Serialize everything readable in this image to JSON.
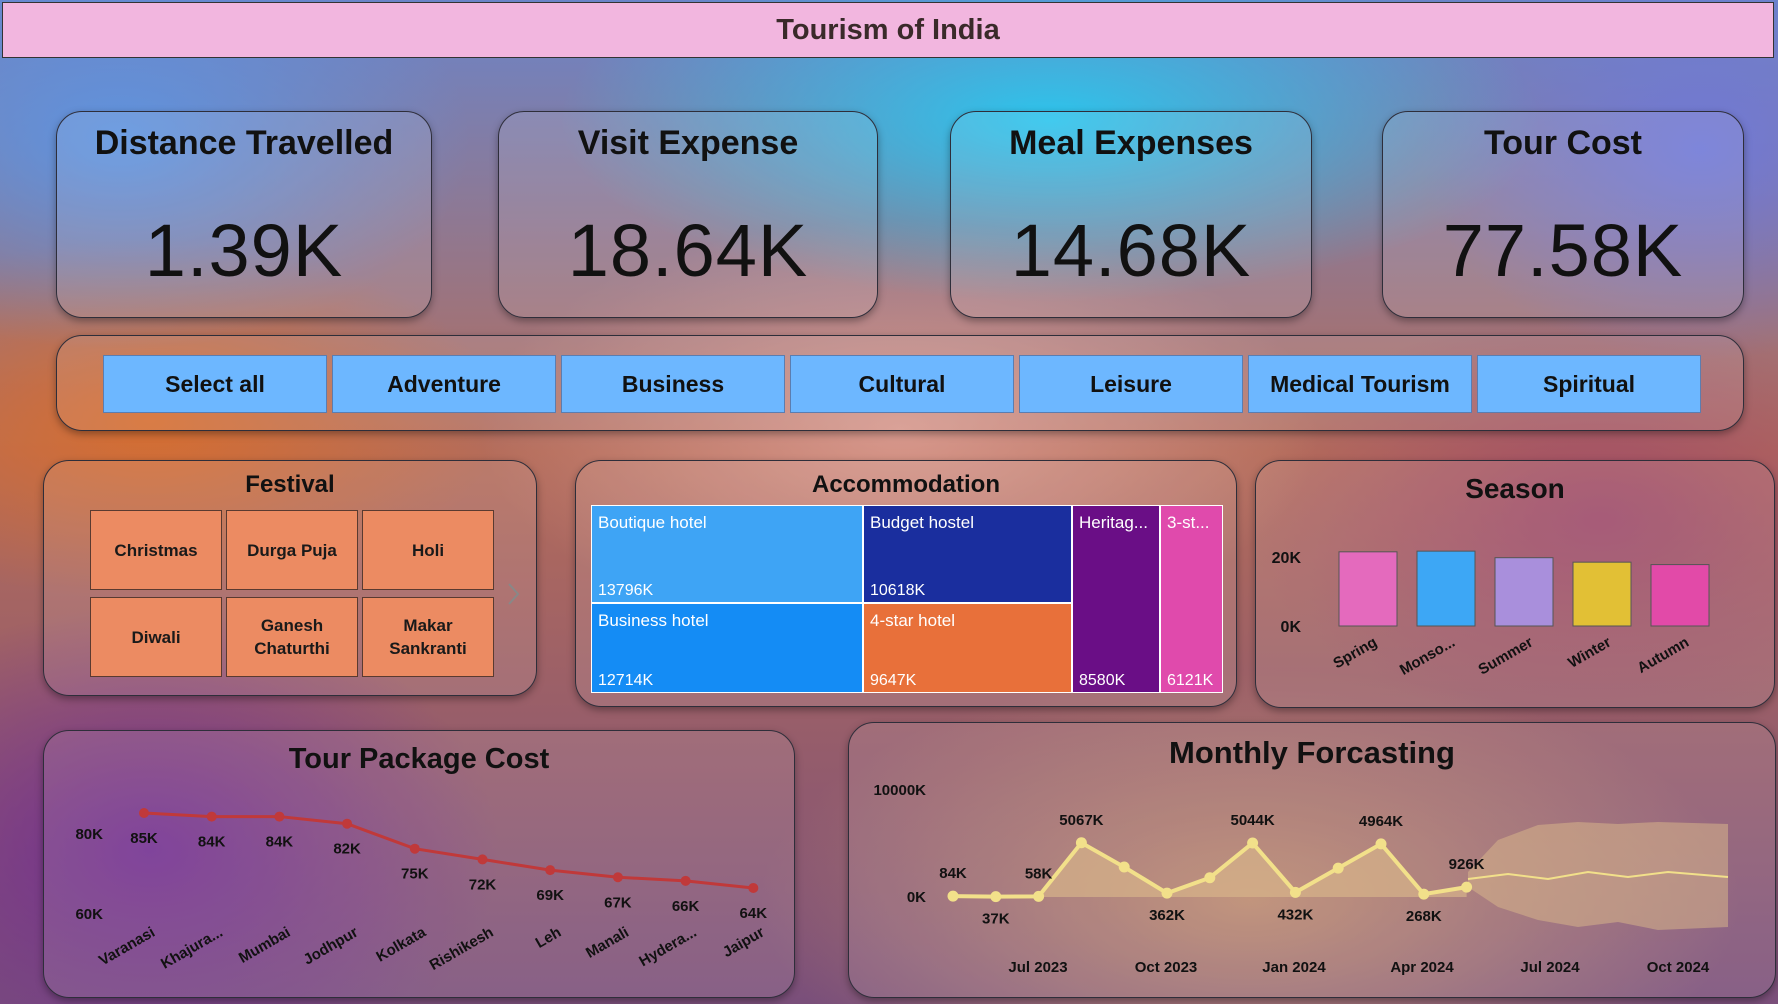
{
  "title": "Tourism of India",
  "kpis": [
    {
      "label": "Distance Travelled",
      "value": "1.39K"
    },
    {
      "label": "Visit Expense",
      "value": "18.64K"
    },
    {
      "label": "Meal Expenses",
      "value": "14.68K"
    },
    {
      "label": "Tour Cost",
      "value": "77.58K"
    }
  ],
  "tour_types": [
    "Select all",
    "Adventure",
    "Business",
    "Cultural",
    "Leisure",
    "Medical Tourism",
    "Spiritual"
  ],
  "festival": {
    "title": "Festival",
    "items": [
      "Christmas",
      "Durga Puja",
      "Holi",
      "Diwali",
      "Ganesh Chaturthi",
      "Makar Sankranti"
    ],
    "next_icon": "chevron-right-icon"
  },
  "accommodation": {
    "title": "Accommodation",
    "items": [
      {
        "label": "Boutique hotel",
        "value": "13796K",
        "color": "#3ea4f5"
      },
      {
        "label": "Business hotel",
        "value": "12714K",
        "color": "#148cf5"
      },
      {
        "label": "Budget hostel",
        "value": "10618K",
        "color": "#1a2e9e"
      },
      {
        "label": "4-star hotel",
        "value": "9647K",
        "color": "#e8703a"
      },
      {
        "label": "Heritag...",
        "value": "8580K",
        "color": "#6a0e86"
      },
      {
        "label": "3-st...",
        "value": "6121K",
        "color": "#e04aac"
      }
    ]
  },
  "season": {
    "title": "Season",
    "yticks": [
      "20K",
      "0K"
    ],
    "categories": [
      "Spring",
      "Monso...",
      "Summer",
      "Winter",
      "Autumn"
    ],
    "values": [
      21500,
      21700,
      19800,
      18500,
      17800
    ],
    "colors": [
      "#e46abd",
      "#3da7f5",
      "#a98fdc",
      "#e2c035",
      "#e24aa8"
    ]
  },
  "tour_package": {
    "title": "Tour Package Cost",
    "yticks": [
      "80K",
      "60K"
    ],
    "categories": [
      "Varanasi",
      "Khajura...",
      "Mumbai",
      "Jodhpur",
      "Kolkata",
      "Rishikesh",
      "Leh",
      "Manali",
      "Hydera...",
      "Jaipur"
    ],
    "values": [
      85,
      84,
      84,
      82,
      75,
      72,
      69,
      67,
      66,
      64
    ],
    "labels": [
      "85K",
      "84K",
      "84K",
      "82K",
      "75K",
      "72K",
      "69K",
      "67K",
      "66K",
      "64K"
    ],
    "color": "#c0393a"
  },
  "forecast": {
    "title": "Monthly Forcasting",
    "yticks": [
      "10000K",
      "0K"
    ],
    "xticks": [
      "Jul 2023",
      "Oct 2023",
      "Jan 2024",
      "Apr 2024",
      "Jul 2024",
      "Oct 2024"
    ],
    "values": [
      84,
      37,
      58,
      5067,
      2800,
      362,
      1800,
      5044,
      432,
      2700,
      4964,
      268,
      926
    ],
    "labels": [
      "84K",
      "37K",
      "58K",
      "5067K",
      "",
      "362K",
      "",
      "5044K",
      "432K",
      "",
      "4964K",
      "268K",
      "926K"
    ],
    "line_color": "#f2e08a",
    "area_color": "#d7b48a"
  }
}
